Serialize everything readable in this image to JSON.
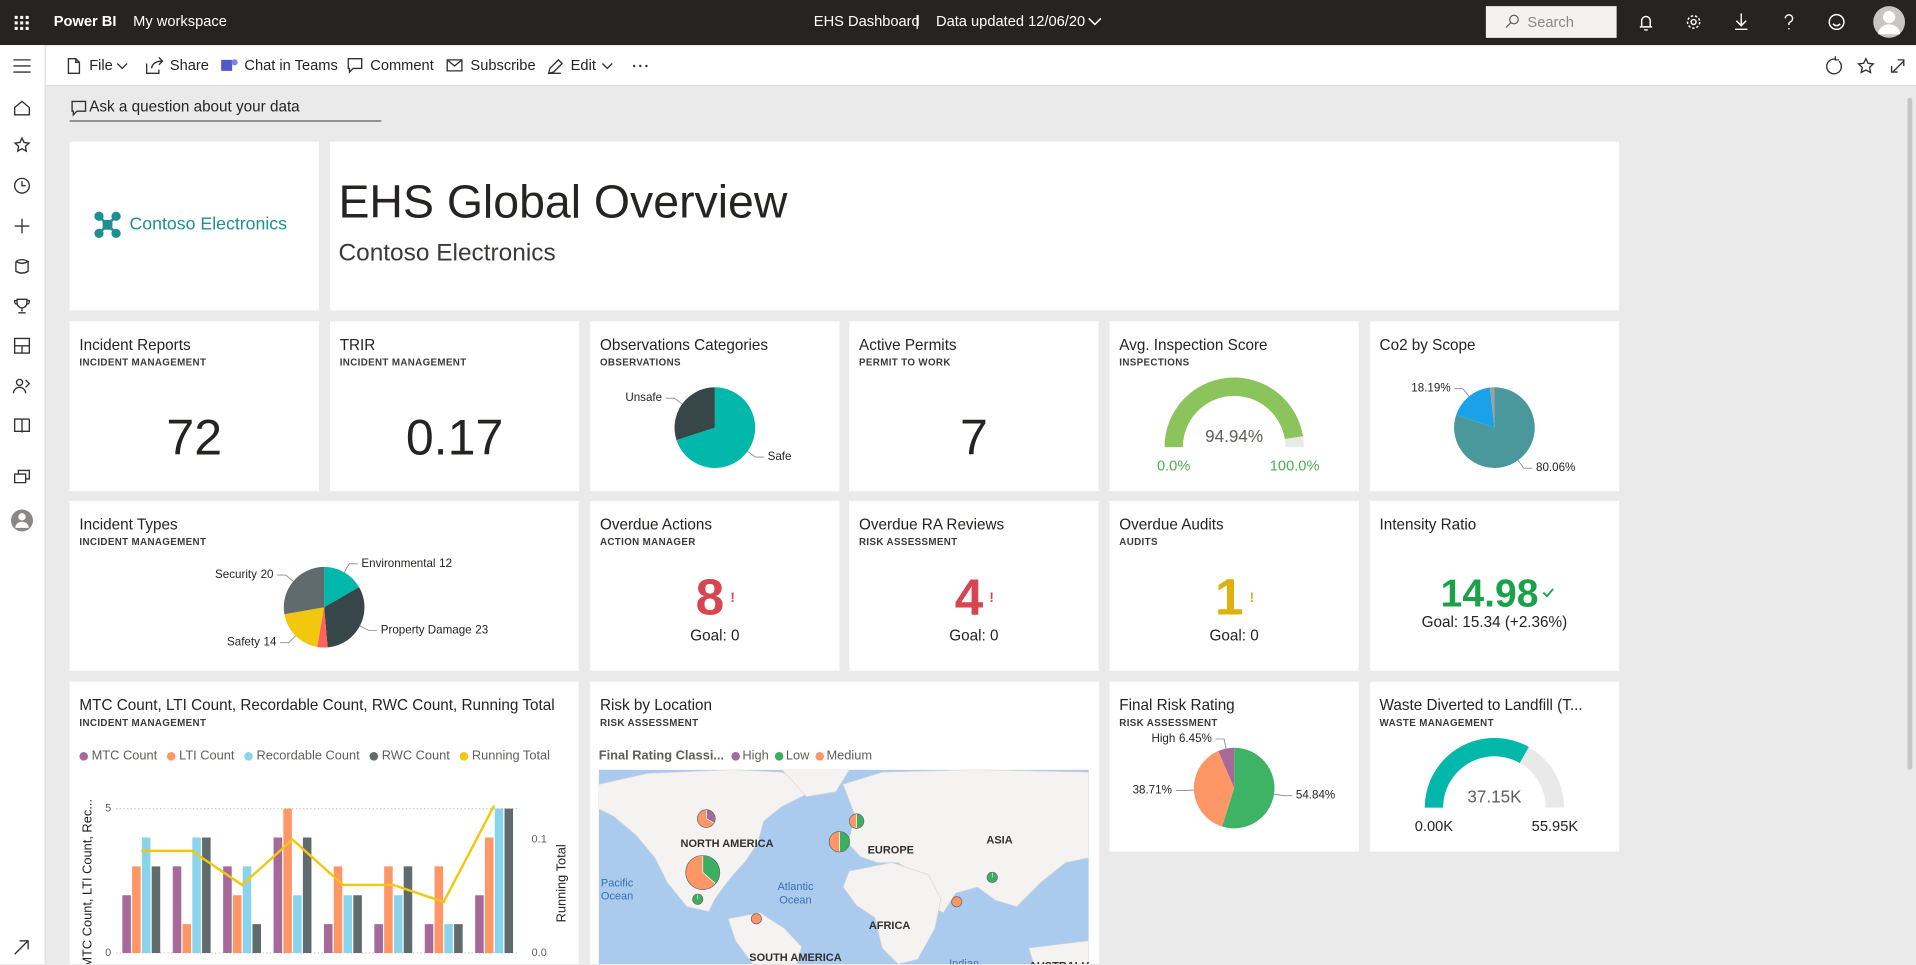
{
  "topbar": {
    "app": "Power BI",
    "workspace": "My workspace",
    "dashboard": "EHS Dashboard",
    "separator": "|",
    "updated": "Data updated 12/06/20",
    "search": "Search"
  },
  "toolbar": {
    "file": "File",
    "share": "Share",
    "teams": "Chat in Teams",
    "comment": "Comment",
    "subscribe": "Subscribe",
    "edit": "Edit"
  },
  "qna": "Ask a question about your data",
  "logo": "Contoso Electronics",
  "header": {
    "title": "EHS Global Overview",
    "subtitle": "Contoso Electronics"
  },
  "tiles": [
    {
      "title": "Incident Reports",
      "subtitle": "INCIDENT MANAGEMENT",
      "chart": {
        "type": "card",
        "value": 72
      }
    },
    {
      "title": "TRIR",
      "subtitle": "INCIDENT MANAGEMENT",
      "chart": {
        "type": "card",
        "value": 0.17
      }
    },
    {
      "title": "Observations Categories",
      "subtitle": "OBSERVATIONS",
      "chart": {
        "type": "pie",
        "categories": [
          "Safe",
          "Unsafe"
        ],
        "values": [
          70,
          30
        ],
        "colors": [
          "#01b8aa",
          "#374649"
        ],
        "label_values": false
      }
    },
    {
      "title": "Active Permits",
      "subtitle": "PERMIT TO WORK",
      "chart": {
        "type": "card",
        "value": 7
      }
    },
    {
      "title": "Avg. Inspection Score",
      "subtitle": "INSPECTIONS",
      "chart": {
        "type": "gauge",
        "value": 94.94,
        "value_label": "94.94%",
        "min": {
          "value": 0,
          "label": "0.0%"
        },
        "max": {
          "value": 100,
          "label": "100.0%"
        },
        "color": "#8bc45a",
        "label_color": "#4caf50"
      }
    },
    {
      "title": "Co2 by Scope",
      "chart": {
        "type": "pie",
        "values": [
          80.06,
          18.19,
          1.75
        ],
        "value_labels": [
          "80.06%",
          "18.19%",
          null
        ],
        "colors": [
          "#4a979c",
          "#1aa2e8",
          "#a0a0a0"
        ],
        "label_values": false
      }
    },
    {
      "title": "Incident Types",
      "subtitle": "INCIDENT MANAGEMENT",
      "chart": {
        "type": "pie",
        "categories": [
          "Environmental",
          "Property Damage",
          null,
          "Safety",
          "Security"
        ],
        "values": [
          12,
          23,
          3,
          14,
          20
        ],
        "colors": [
          "#01b8aa",
          "#374649",
          "#fd625e",
          "#f2c80f",
          "#5f6b6d"
        ],
        "label_values": true
      }
    },
    {
      "title": "Overdue Actions",
      "subtitle": "ACTION MANAGER",
      "chart": {
        "type": "kpi",
        "value": 8,
        "status": "!",
        "goal": "Goal: 0",
        "color": "#d64550"
      }
    },
    {
      "title": "Overdue RA Reviews",
      "subtitle": "RISK ASSESSMENT",
      "chart": {
        "type": "kpi",
        "value": 4,
        "status": "!",
        "goal": "Goal: 0",
        "color": "#d64550"
      }
    },
    {
      "title": "Overdue Audits",
      "subtitle": "AUDITS",
      "chart": {
        "type": "kpi",
        "value": 1,
        "status": "!",
        "goal": "Goal: 0",
        "color": "#e0b00f"
      }
    },
    {
      "title": "Intensity Ratio",
      "chart": {
        "type": "kpi",
        "value": 14.98,
        "indicator": "check",
        "goal": "Goal: 15.34 (+2.36%)",
        "color": "#1aa14a"
      }
    },
    {
      "title": "MTC Count, LTI Count, Recordable Count, RWC Count, Running Total",
      "subtitle": "INCIDENT MANAGEMENT",
      "chart": {
        "type": "combo",
        "categories": [
          null,
          null,
          null,
          null,
          null,
          null,
          null,
          null
        ],
        "series": [
          {
            "name": "MTC Count",
            "color": "#a66999",
            "values": [
              2,
              3,
              3,
              4,
              1,
              1,
              1,
              2
            ]
          },
          {
            "name": "LTI Count",
            "color": "#fe9666",
            "values": [
              3,
              1,
              2,
              5,
              3,
              3,
              3,
              4
            ]
          },
          {
            "name": "Recordable Count",
            "color": "#8ad4eb",
            "values": [
              4,
              4,
              3,
              2,
              2,
              2,
              1,
              5
            ]
          },
          {
            "name": "RWC Count",
            "color": "#5f6b6d",
            "values": [
              3,
              4,
              1,
              4,
              2,
              3,
              1,
              5
            ]
          },
          {
            "name": "Running Total",
            "color": "#f2c80f",
            "type": "line",
            "axis": "y2",
            "values": [
              0.09,
              0.09,
              0.06,
              0.1,
              0.06,
              0.06,
              0.045,
              0.13
            ]
          }
        ],
        "ylabel": "MTC Count, LTI Count, Rec...",
        "y2label": "Running Total",
        "ylim": [
          0,
          5.5
        ],
        "yticks": [
          0,
          5
        ],
        "y2lim": [
          0,
          0.14
        ],
        "y2ticks": [
          {
            "value": 0,
            "label": "0.0"
          },
          {
            "value": 0.1,
            "label": "0.1"
          }
        ],
        "grid": true
      }
    },
    {
      "title": "Risk by Location",
      "subtitle": "RISK ASSESSMENT",
      "chart": {
        "type": "map",
        "legend_title": "Final Rating Classi...",
        "categories": [
          "High",
          "Low",
          "Medium"
        ],
        "colors": [
          "#a66999",
          "#3aaf5f",
          "#fe9666"
        ],
        "region_labels": [
          "NORTH AMERICA",
          "EUROPE",
          "ASIA",
          "AFRICA",
          "SOUTH AMERICA",
          "AUSTRALIA"
        ],
        "ocean_labels": [
          [
            "Pacific",
            "Ocean"
          ],
          [
            "Atlantic",
            "Ocean"
          ],
          [
            "Indian"
          ]
        ],
        "locations": [
          {
            "lon": -114.5,
            "lat": 56.7,
            "values": [
              1,
              0,
              2
            ]
          },
          {
            "lon": -117,
            "lat": 30.4,
            "values": [
              0,
              4,
              7
            ]
          },
          {
            "lon": -120.5,
            "lat": 17.3,
            "values": [
              0,
              1,
              0
            ]
          },
          {
            "lon": -79.5,
            "lat": 7.8,
            "values": [
              0,
              0,
              1
            ]
          },
          {
            "lon": -21.4,
            "lat": 45.4,
            "values": [
              0,
              2,
              2
            ]
          },
          {
            "lon": -9.4,
            "lat": 55.5,
            "values": [
              0,
              1,
              1
            ]
          },
          {
            "lon": 85.5,
            "lat": 28,
            "values": [
              0,
              1,
              0
            ]
          },
          {
            "lon": 60.7,
            "lat": 16.1,
            "values": [
              0,
              0,
              1
            ]
          }
        ]
      }
    },
    {
      "title": "Final Risk Rating",
      "subtitle": "RISK ASSESSMENT",
      "chart": {
        "type": "pie",
        "categories": [
          null,
          null,
          "High"
        ],
        "values": [
          54.84,
          38.71,
          6.45
        ],
        "value_labels": [
          "54.84%",
          "38.71%",
          "6.45%"
        ],
        "colors": [
          "#3fb365",
          "#fe9666",
          "#a66999"
        ],
        "label_values": false
      }
    },
    {
      "title": "Waste Diverted to Landfill (T...",
      "subtitle": "WASTE MANAGEMENT",
      "chart": {
        "type": "gauge",
        "value": 37150,
        "value_label": "37.15K",
        "min": {
          "value": 0,
          "label": "0.00K"
        },
        "max": {
          "value": 55950,
          "label": "55.95K"
        },
        "color": "#01b8aa",
        "label_color": "#252423"
      }
    }
  ]
}
